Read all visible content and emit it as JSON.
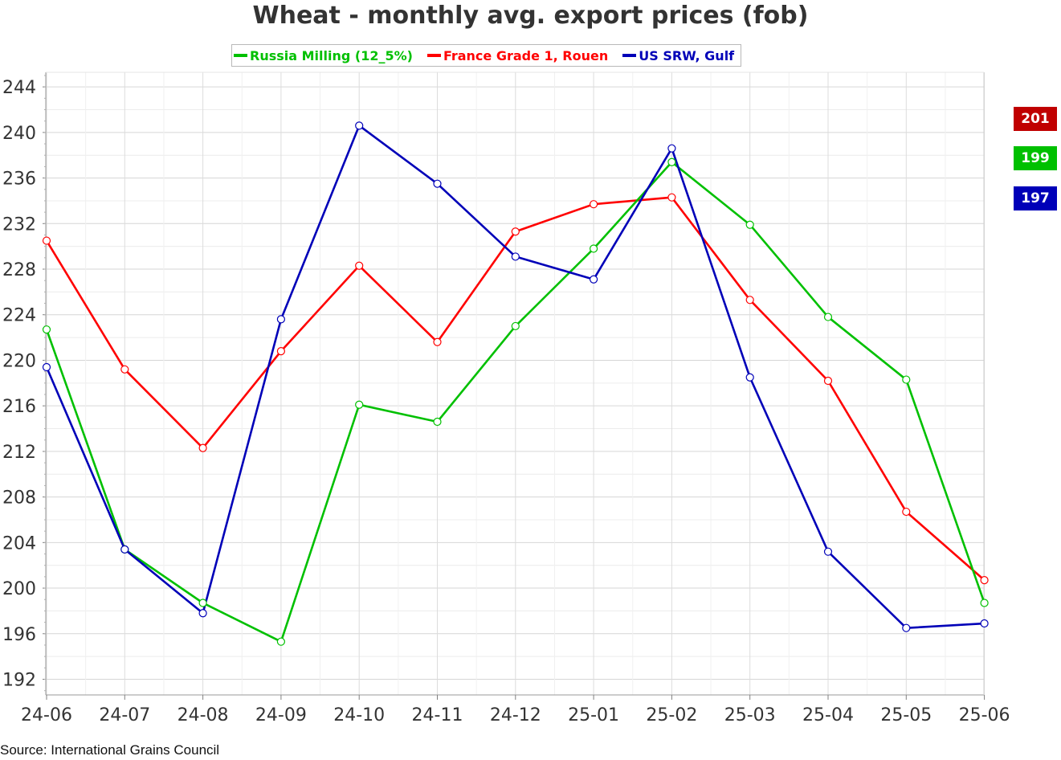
{
  "chart_data": {
    "type": "line",
    "title": "Wheat - monthly avg. export prices (fob)",
    "xlabel": "",
    "ylabel": "",
    "categories": [
      "24-06",
      "24-07",
      "24-08",
      "24-09",
      "24-10",
      "24-11",
      "24-12",
      "25-01",
      "25-02",
      "25-03",
      "25-04",
      "25-05",
      "25-06"
    ],
    "ylim": [
      190,
      245
    ],
    "yticks": [
      192,
      196,
      200,
      204,
      208,
      212,
      216,
      220,
      224,
      228,
      232,
      236,
      240,
      244
    ],
    "grid": true,
    "legend_position": "top-center",
    "series": [
      {
        "name": "Russia Milling (12_5%)",
        "color": "#00c000",
        "values": [
          222.7,
          203.4,
          198.7,
          195.3,
          216.1,
          214.6,
          223.0,
          229.8,
          237.4,
          231.9,
          223.8,
          218.3,
          198.7
        ]
      },
      {
        "name": "France Grade 1, Rouen",
        "color": "#ff0000",
        "values": [
          230.5,
          219.2,
          212.3,
          220.8,
          228.3,
          221.6,
          231.3,
          233.7,
          234.3,
          225.3,
          218.2,
          206.7,
          200.7
        ]
      },
      {
        "name": "US SRW, Gulf",
        "color": "#0000b8",
        "values": [
          219.4,
          203.4,
          197.8,
          223.6,
          240.6,
          235.5,
          229.1,
          227.1,
          238.6,
          218.5,
          203.2,
          196.5,
          196.9
        ]
      }
    ],
    "end_labels": [
      {
        "text": "201",
        "color": "#c00000"
      },
      {
        "text": "199",
        "color": "#00c000"
      },
      {
        "text": "197",
        "color": "#0000b8"
      }
    ]
  },
  "source": "Source: International Grains Council"
}
